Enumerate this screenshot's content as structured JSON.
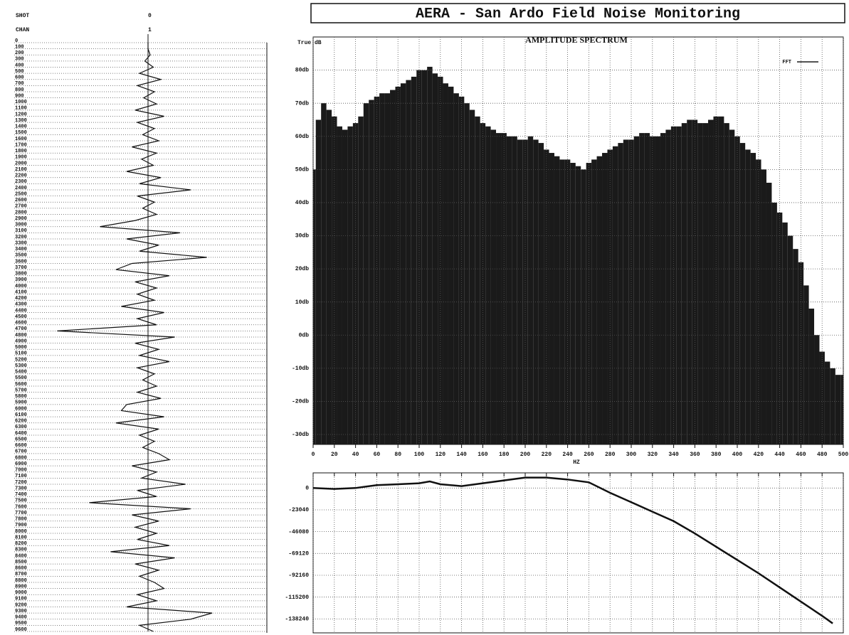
{
  "title": "AERA - San Ardo Field Noise Monitoring",
  "chart_data": [
    {
      "type": "trace",
      "header": [
        {
          "label": "SHOT",
          "value": 0
        },
        {
          "label": "CHAN",
          "value": 1
        }
      ],
      "ylim": [
        0,
        9600
      ],
      "yticks": [
        0,
        100,
        200,
        300,
        400,
        500,
        600,
        700,
        800,
        900,
        1000,
        1100,
        1200,
        1300,
        1400,
        1500,
        1600,
        1700,
        1800,
        1900,
        2000,
        2100,
        2200,
        2300,
        2400,
        2500,
        2600,
        2700,
        2800,
        2900,
        3000,
        3100,
        3200,
        3300,
        3400,
        3500,
        3600,
        3700,
        3800,
        3900,
        4000,
        4100,
        4200,
        4300,
        4400,
        4500,
        4600,
        4700,
        4800,
        4900,
        5000,
        5100,
        5200,
        5300,
        5400,
        5500,
        5600,
        5700,
        5800,
        5900,
        6000,
        6100,
        6200,
        6300,
        6400,
        6500,
        6600,
        6700,
        6800,
        6900,
        7000,
        7100,
        7200,
        7300,
        7400,
        7500,
        7600,
        7700,
        7800,
        7900,
        8000,
        8100,
        8200,
        8300,
        8400,
        8500,
        8600,
        8700,
        8800,
        8900,
        9000,
        9100,
        9200,
        9300,
        9400,
        9500,
        9600
      ],
      "xlim": [
        -100,
        100
      ],
      "time": [
        0,
        100,
        200,
        300,
        400,
        500,
        600,
        700,
        800,
        900,
        1000,
        1100,
        1200,
        1300,
        1400,
        1500,
        1600,
        1700,
        1800,
        1900,
        2000,
        2100,
        2200,
        2300,
        2400,
        2500,
        2600,
        2700,
        2800,
        2900,
        3000,
        3100,
        3200,
        3300,
        3400,
        3500,
        3600,
        3700,
        3800,
        3900,
        4000,
        4100,
        4200,
        4300,
        4400,
        4500,
        4600,
        4700,
        4800,
        4900,
        5000,
        5100,
        5200,
        5300,
        5400,
        5500,
        5600,
        5700,
        5800,
        5900,
        6000,
        6100,
        6200,
        6300,
        6400,
        6500,
        6600,
        6700,
        6800,
        6900,
        7000,
        7100,
        7200,
        7300,
        7400,
        7500,
        7600,
        7700,
        7800,
        7900,
        8000,
        8100,
        8200,
        8300,
        8400,
        8500,
        8600,
        8700,
        8800,
        8900,
        9000,
        9100,
        9200,
        9300,
        9400,
        9500,
        9600
      ],
      "values": [
        0,
        0,
        2,
        -3,
        5,
        -8,
        12,
        -10,
        6,
        -4,
        8,
        -12,
        15,
        -10,
        6,
        -5,
        10,
        -15,
        8,
        -6,
        5,
        -20,
        12,
        -8,
        40,
        -10,
        6,
        -5,
        8,
        -12,
        -45,
        30,
        -20,
        10,
        -8,
        55,
        -15,
        -30,
        20,
        -12,
        8,
        -10,
        6,
        -25,
        15,
        -10,
        8,
        -85,
        25,
        -12,
        10,
        -8,
        20,
        -10,
        6,
        -5,
        8,
        -10,
        12,
        -20,
        -25,
        15,
        -30,
        10,
        -8,
        6,
        -5,
        10,
        20,
        -15,
        8,
        -6,
        35,
        -10,
        8,
        -55,
        40,
        -15,
        10,
        -12,
        8,
        -10,
        20,
        -35,
        25,
        -12,
        10,
        -8,
        6,
        15,
        -10,
        8,
        -20,
        60,
        40,
        -8,
        5
      ],
      "color": "#111111"
    },
    {
      "type": "bar",
      "title": "AMPLITUDE SPECTRUM",
      "y_label": "True dB",
      "x_label": "HZ",
      "xlim": [
        0,
        500
      ],
      "xticks": [
        0,
        20,
        40,
        60,
        80,
        100,
        120,
        140,
        160,
        180,
        200,
        220,
        240,
        260,
        280,
        300,
        320,
        340,
        360,
        380,
        400,
        420,
        440,
        460,
        480,
        500
      ],
      "ylim": [
        -33,
        90
      ],
      "yticks": [
        {
          "value": -30,
          "label": "-30db"
        },
        {
          "value": -20,
          "label": "-20db"
        },
        {
          "value": -10,
          "label": "-10db"
        },
        {
          "value": 0,
          "label": "0db"
        },
        {
          "value": 10,
          "label": "10db"
        },
        {
          "value": 20,
          "label": "20db"
        },
        {
          "value": 30,
          "label": "30db"
        },
        {
          "value": 40,
          "label": "40db"
        },
        {
          "value": 50,
          "label": "50db"
        },
        {
          "value": 60,
          "label": "60db"
        },
        {
          "value": 70,
          "label": "70db"
        },
        {
          "value": 80,
          "label": "80db"
        }
      ],
      "grid": true,
      "x": [
        0,
        5,
        10,
        15,
        20,
        25,
        30,
        35,
        40,
        45,
        50,
        55,
        60,
        65,
        70,
        75,
        80,
        85,
        90,
        95,
        100,
        105,
        110,
        115,
        120,
        125,
        130,
        135,
        140,
        145,
        150,
        155,
        160,
        165,
        170,
        175,
        180,
        185,
        190,
        195,
        200,
        205,
        210,
        215,
        220,
        225,
        230,
        235,
        240,
        245,
        250,
        255,
        260,
        265,
        270,
        275,
        280,
        285,
        290,
        295,
        300,
        305,
        310,
        315,
        320,
        325,
        330,
        335,
        340,
        345,
        350,
        355,
        360,
        365,
        370,
        375,
        380,
        385,
        390,
        395,
        400,
        405,
        410,
        415,
        420,
        425,
        430,
        435,
        440,
        445,
        450,
        455,
        460,
        465,
        470,
        475,
        480,
        485,
        490,
        495,
        500
      ],
      "series": [
        {
          "name": "FFT",
          "color": "#1a1a1a",
          "values": [
            50,
            65,
            70,
            68,
            66,
            63,
            62,
            63,
            64,
            66,
            70,
            71,
            72,
            73,
            73,
            74,
            75,
            76,
            77,
            78,
            80,
            80,
            81,
            79,
            78,
            76,
            75,
            73,
            72,
            70,
            68,
            66,
            64,
            63,
            62,
            61,
            61,
            60,
            60,
            59,
            59,
            60,
            59,
            58,
            56,
            55,
            54,
            53,
            53,
            52,
            51,
            50,
            52,
            53,
            54,
            55,
            56,
            57,
            58,
            59,
            59,
            60,
            61,
            61,
            60,
            60,
            61,
            62,
            63,
            63,
            64,
            65,
            65,
            64,
            64,
            65,
            66,
            66,
            64,
            62,
            60,
            58,
            56,
            55,
            53,
            50,
            46,
            40,
            37,
            34,
            30,
            26,
            22,
            15,
            8,
            0,
            -5,
            -8,
            -10,
            -12,
            -12
          ]
        }
      ]
    },
    {
      "type": "line",
      "xlim": [
        0,
        500
      ],
      "xticks": [
        0,
        20,
        40,
        60,
        80,
        100,
        120,
        140,
        160,
        180,
        200,
        220,
        240,
        260,
        280,
        300,
        320,
        340,
        360,
        380,
        400,
        420,
        440,
        460,
        480,
        500
      ],
      "ylim": [
        -153000,
        16000
      ],
      "yticks": [
        0,
        -23040,
        -46080,
        -69120,
        -92160,
        -115200,
        -138240
      ],
      "grid": true,
      "x": [
        0,
        20,
        40,
        60,
        80,
        100,
        110,
        120,
        140,
        160,
        180,
        200,
        220,
        240,
        260,
        280,
        300,
        320,
        340,
        360,
        380,
        400,
        420,
        440,
        460,
        480,
        490
      ],
      "series": [
        {
          "color": "#111111",
          "values": [
            0,
            -1000,
            0,
            3000,
            4000,
            5000,
            7000,
            4000,
            2000,
            5000,
            8000,
            11000,
            11000,
            9000,
            6000,
            -5000,
            -15000,
            -25000,
            -35000,
            -48000,
            -62000,
            -76000,
            -90000,
            -105000,
            -120000,
            -135000,
            -143000
          ]
        }
      ]
    }
  ]
}
